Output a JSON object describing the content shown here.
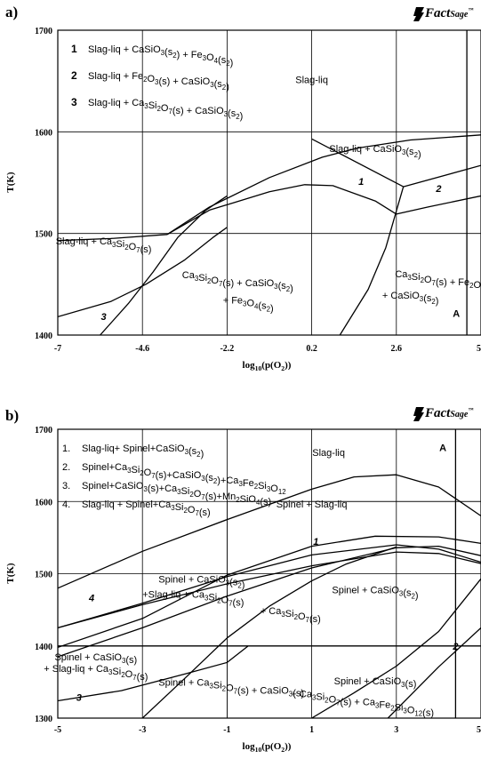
{
  "chart_data": [
    {
      "type": "phase-diagram",
      "panel_label": "a)",
      "logo": {
        "main": "Fact",
        "sup": "Sage",
        "mark": "™"
      },
      "xlabel": "log10(p(O2))",
      "ylabel": "T(K)",
      "xlim": [
        -7,
        5
      ],
      "ylim": [
        1400,
        1700
      ],
      "x_ticks": [
        "-7",
        "-4.6",
        "-2.2",
        "0.2",
        "2.6",
        "5"
      ],
      "y_ticks": [
        "1700",
        "1600",
        "1500",
        "1400"
      ],
      "legend": [
        {
          "num": "1",
          "text": "Slag-liq + CaSiO3(s2) + Fe3O4(s2)"
        },
        {
          "num": "2",
          "text": "Slag-liq + Fe2O3(s) + CaSiO3(s2)"
        },
        {
          "num": "3",
          "text": "Slag-liq + Ca3Si2O7(s) + CaSiO3(s2)"
        }
      ],
      "regions": [
        {
          "text": "Slag-liq",
          "x": 0.2,
          "y": 1648
        },
        {
          "text": "Slag-liq + CaSiO3(s2)",
          "x": 2.0,
          "y": 1580
        },
        {
          "text": "Slag-liq + Ca3Si2O7(s)",
          "x": -5.7,
          "y": 1489
        },
        {
          "text": "Ca3Si2O7(s) + CaSiO3(s2)",
          "x": -1.9,
          "y": 1456
        },
        {
          "text": "+ Fe3O4(s2)",
          "x": -1.6,
          "y": 1431
        },
        {
          "text": "Ca3Si2O7(s) + Fe2O3(s)",
          "x": 4.0,
          "y": 1457
        },
        {
          "text": "+ CaSiO3(s2)",
          "x": 3.0,
          "y": 1436
        },
        {
          "text": "A",
          "x": 4.3,
          "y": 1418
        },
        {
          "text": "1",
          "x": 1.6,
          "y": 1548
        },
        {
          "text": "2",
          "x": 3.8,
          "y": 1541
        },
        {
          "text": "3",
          "x": -5.7,
          "y": 1415
        }
      ],
      "boundaries": [
        [
          [
            -7,
            1493
          ],
          [
            -5.5,
            1495
          ],
          [
            -3.9,
            1499
          ]
        ],
        [
          [
            -7,
            1418
          ],
          [
            -5.5,
            1433
          ],
          [
            -4.5,
            1450
          ],
          [
            -3.4,
            1474
          ],
          [
            -2.6,
            1496
          ],
          [
            -2.2,
            1506
          ]
        ],
        [
          [
            -5.8,
            1400
          ],
          [
            -5.0,
            1431
          ],
          [
            -4.3,
            1462
          ],
          [
            -3.6,
            1496
          ],
          [
            -2.8,
            1523
          ],
          [
            -2.2,
            1537
          ]
        ],
        [
          [
            -3.9,
            1499
          ],
          [
            -2.7,
            1526
          ],
          [
            -1.0,
            1555
          ],
          [
            0.5,
            1575
          ],
          [
            1.5,
            1584
          ],
          [
            3.0,
            1592
          ],
          [
            5.0,
            1597
          ]
        ],
        [
          [
            -3.9,
            1499
          ],
          [
            -2.7,
            1523
          ],
          [
            -1.0,
            1541
          ],
          [
            0,
            1548
          ],
          [
            0.8,
            1547
          ],
          [
            2.0,
            1532
          ],
          [
            2.6,
            1519
          ]
        ],
        [
          [
            2.6,
            1519
          ],
          [
            3.5,
            1526
          ],
          [
            5.0,
            1537
          ]
        ],
        [
          [
            0.2,
            1593
          ],
          [
            2.8,
            1546
          ],
          [
            5.0,
            1567
          ]
        ],
        [
          [
            1.0,
            1400
          ],
          [
            1.8,
            1445
          ],
          [
            2.3,
            1486
          ],
          [
            2.8,
            1546
          ]
        ],
        [
          [
            4.6,
            1400
          ],
          [
            4.6,
            1700
          ]
        ]
      ]
    },
    {
      "type": "phase-diagram",
      "panel_label": "b)",
      "logo": {
        "main": "Fact",
        "sup": "Sage",
        "mark": "™"
      },
      "xlabel": "log10(p(O2))",
      "ylabel": "T(K)",
      "xlim": [
        -5,
        5
      ],
      "ylim": [
        1300,
        1700
      ],
      "x_ticks": [
        "-5",
        "-3",
        "-1",
        "1",
        "3",
        "5"
      ],
      "y_ticks": [
        "1700",
        "1600",
        "1500",
        "1400",
        "1300"
      ],
      "legend": [
        {
          "num": "1.",
          "text": "Slag-liq+ Spinel+CaSiO3(s2)"
        },
        {
          "num": "2.",
          "text": "Spinel+Ca3Si2O7(s)+CaSiO3(s2)+Ca3Fe2Si3O12"
        },
        {
          "num": "3.",
          "text": "Spinel+CaSiO3(s)+Ca3Si2O7(s)+Mn2SiO4(s)"
        },
        {
          "num": "4.",
          "text": "Slag-liq + Spinel+Ca3Si2O7(s)"
        }
      ],
      "regions": [
        {
          "text": "Slag-liq",
          "x": 1.4,
          "y": 1663
        },
        {
          "text": "A",
          "x": 4.1,
          "y": 1670
        },
        {
          "text": "Spinel + Slag-liq",
          "x": 1.0,
          "y": 1592
        },
        {
          "text": "1",
          "x": 1.1,
          "y": 1540
        },
        {
          "text": "Spinel + CaSiO3(s2)",
          "x": -1.6,
          "y": 1488
        },
        {
          "text": "+Slag-liq + Ca3Si2O7(s)",
          "x": -1.8,
          "y": 1467
        },
        {
          "text": "Spinel + CaSiO3(s2)",
          "x": 2.5,
          "y": 1473
        },
        {
          "text": "+ Ca3Si2O7(s)",
          "x": 0.5,
          "y": 1444
        },
        {
          "text": "4",
          "x": -4.2,
          "y": 1462
        },
        {
          "text": "2",
          "x": 4.4,
          "y": 1395
        },
        {
          "text": "Spinel + CaSiO3(s)",
          "x": -4.1,
          "y": 1380
        },
        {
          "text": "+ Slag-liq + Ca3Si2O7(s)",
          "x": -4.1,
          "y": 1364
        },
        {
          "text": "3",
          "x": -4.5,
          "y": 1324
        },
        {
          "text": "Spinel + Ca3Si2O7(s) + CaSiO3(s)",
          "x": -0.9,
          "y": 1345
        },
        {
          "text": "Spinel + CaSiO3(s)",
          "x": 2.5,
          "y": 1347
        },
        {
          "text": "+ Ca3Si2O7(s) + Ca3Fe2Si3O12(s)",
          "x": 2.2,
          "y": 1329
        }
      ],
      "boundaries": [
        [
          [
            -5,
            1480
          ],
          [
            -3,
            1531
          ],
          [
            -1,
            1575
          ],
          [
            1,
            1617
          ],
          [
            2,
            1634
          ],
          [
            3,
            1637
          ],
          [
            4,
            1620
          ],
          [
            5,
            1580
          ]
        ],
        [
          [
            -5,
            1425
          ],
          [
            -3,
            1459
          ],
          [
            -1,
            1496
          ],
          [
            1,
            1526
          ],
          [
            3,
            1540
          ],
          [
            4,
            1534
          ],
          [
            5,
            1516
          ]
        ],
        [
          [
            -5,
            1425
          ],
          [
            -3,
            1457
          ],
          [
            -1,
            1486
          ],
          [
            1,
            1511
          ],
          [
            3,
            1530
          ],
          [
            4,
            1528
          ],
          [
            5,
            1514
          ]
        ],
        [
          [
            -5,
            1398
          ],
          [
            -3,
            1438
          ],
          [
            -1,
            1498
          ],
          [
            1,
            1538
          ],
          [
            2.5,
            1552
          ],
          [
            4,
            1551
          ],
          [
            5,
            1542
          ]
        ],
        [
          [
            -5,
            1385
          ],
          [
            -3,
            1425
          ],
          [
            -1,
            1469
          ],
          [
            1,
            1508
          ],
          [
            3,
            1536
          ],
          [
            4,
            1538
          ],
          [
            5,
            1525
          ]
        ],
        [
          [
            -5,
            1324
          ],
          [
            -3.5,
            1338
          ],
          [
            -2,
            1361
          ],
          [
            -1,
            1377
          ],
          [
            -0.5,
            1400
          ]
        ],
        [
          [
            -5,
            1400
          ],
          [
            5,
            1400
          ]
        ],
        [
          [
            -3,
            1300
          ],
          [
            -2,
            1355
          ],
          [
            -1,
            1411
          ],
          [
            0,
            1455
          ],
          [
            1,
            1490
          ],
          [
            1.8,
            1513
          ],
          [
            3,
            1537
          ]
        ],
        [
          [
            1,
            1300
          ],
          [
            2,
            1335
          ],
          [
            3,
            1372
          ],
          [
            4,
            1420
          ],
          [
            5,
            1493
          ]
        ],
        [
          [
            2.8,
            1300
          ],
          [
            4,
            1371
          ],
          [
            5,
            1425
          ]
        ],
        [
          [
            4.4,
            1300
          ],
          [
            4.4,
            1700
          ]
        ]
      ]
    }
  ]
}
